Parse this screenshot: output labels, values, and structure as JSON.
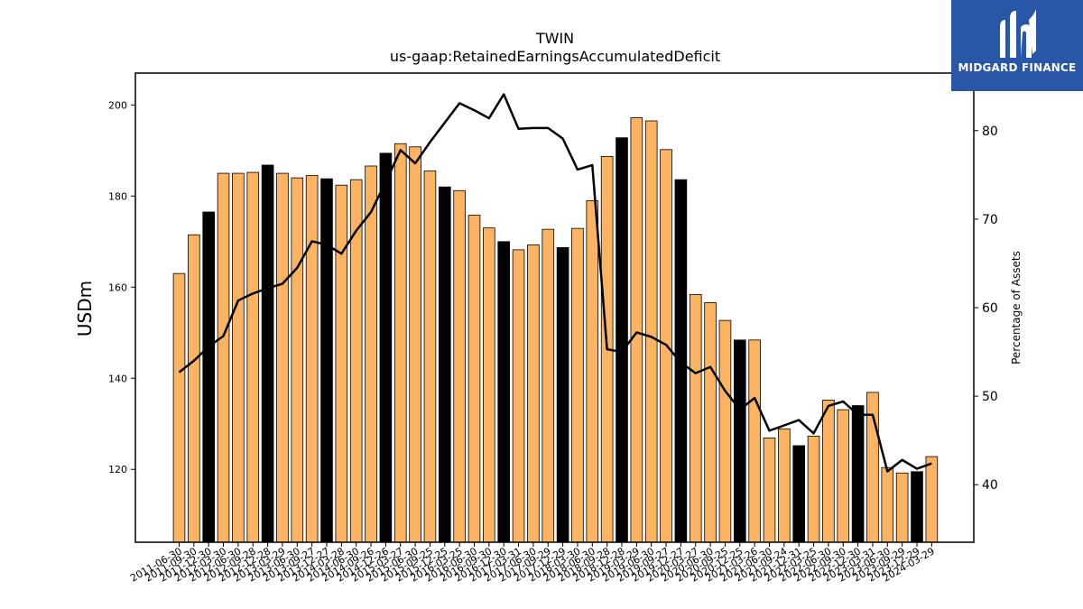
{
  "chart_data": {
    "type": "bar",
    "title": "TWIN",
    "subtitle": "us-gaap:RetainedEarningsAccumulatedDeficit",
    "ylabel": "USDm",
    "y2label": "Percentage of Assets",
    "ylim": [
      104,
      207
    ],
    "y2lim": [
      33.5,
      86.5
    ],
    "yticks": [
      120,
      140,
      160,
      180,
      200
    ],
    "y2ticks": [
      40,
      50,
      60,
      70,
      80
    ],
    "colors": {
      "bar": "#FDB462",
      "highlight_bar": "#000000",
      "line": "#000000"
    },
    "series": [
      {
        "name": "RetainedEarningsAccumulatedDeficit",
        "type": "bar",
        "axis": "left",
        "categories": [
          "2011-06-30",
          "2011-09-30",
          "2011-12-30",
          "2012-03-30",
          "2012-06-30",
          "2012-09-28",
          "2012-12-28",
          "2013-03-29",
          "2013-06-30",
          "2013-09-27",
          "2013-12-27",
          "2014-03-28",
          "2014-06-30",
          "2014-09-26",
          "2014-12-26",
          "2015-03-27",
          "2015-06-30",
          "2015-09-25",
          "2015-12-25",
          "2016-03-25",
          "2016-06-30",
          "2016-09-30",
          "2016-12-30",
          "2017-03-31",
          "2017-06-30",
          "2017-09-29",
          "2017-12-29",
          "2018-03-30",
          "2018-06-30",
          "2018-09-28",
          "2018-12-28",
          "2019-03-29",
          "2019-06-30",
          "2019-09-27",
          "2019-12-27",
          "2020-03-27",
          "2020-06-30",
          "2020-09-25",
          "2020-12-25",
          "2021-03-26",
          "2021-06-30",
          "2021-09-24",
          "2021-12-31",
          "2022-03-25",
          "2022-06-30",
          "2022-09-30",
          "2022-12-30",
          "2023-03-31",
          "2023-06-30",
          "2023-09-29",
          "2023-12-29",
          "2024-03-29"
        ],
        "values": [
          163,
          171.5,
          176.5,
          185,
          185,
          185.2,
          186.8,
          185,
          184,
          184.5,
          183.8,
          182.4,
          183.6,
          186.6,
          189.4,
          191.5,
          190.8,
          185.5,
          182,
          181.2,
          175.8,
          173,
          170,
          168.2,
          169.3,
          172.7,
          168.7,
          172.9,
          179,
          188.7,
          192.8,
          197.2,
          196.5,
          190.2,
          183.6,
          158.4,
          156.6,
          152.7,
          148.4,
          148.4,
          126.9,
          128.9,
          125.2,
          127.3,
          135.2,
          133.1,
          134,
          136.9,
          120.4,
          119.2,
          119.5,
          122.8
        ],
        "highlight": [
          false,
          false,
          true,
          false,
          false,
          false,
          true,
          false,
          false,
          false,
          true,
          false,
          false,
          false,
          true,
          false,
          false,
          false,
          true,
          false,
          false,
          false,
          true,
          false,
          false,
          false,
          true,
          false,
          false,
          false,
          true,
          false,
          false,
          false,
          true,
          false,
          false,
          false,
          true,
          false,
          false,
          false,
          true,
          false,
          false,
          false,
          true,
          false,
          false,
          false,
          true,
          false
        ]
      },
      {
        "name": "Percentage of Assets",
        "type": "line",
        "axis": "right",
        "values": [
          52.7,
          54,
          55.6,
          56.8,
          60.8,
          61.6,
          62.2,
          62.7,
          64.5,
          67.5,
          67.1,
          66.1,
          68.7,
          70.8,
          74.2,
          77.8,
          76.3,
          78.7,
          80.9,
          83.1,
          82.3,
          81.4,
          84.1,
          80.2,
          80.3,
          80.3,
          79.1,
          75.6,
          76.1,
          55.3,
          55,
          57.2,
          56.7,
          55.8,
          53.8,
          52.6,
          53.3,
          50.6,
          48.5,
          49.8,
          46.1,
          46.7,
          47.3,
          45.8,
          48.9,
          49.4,
          47.9,
          47.9,
          41.5,
          42.8,
          41.8,
          42.4
        ]
      }
    ]
  },
  "logo": {
    "text": "MIDGARD FINANCE",
    "icon": "midgard-logo-icon"
  }
}
